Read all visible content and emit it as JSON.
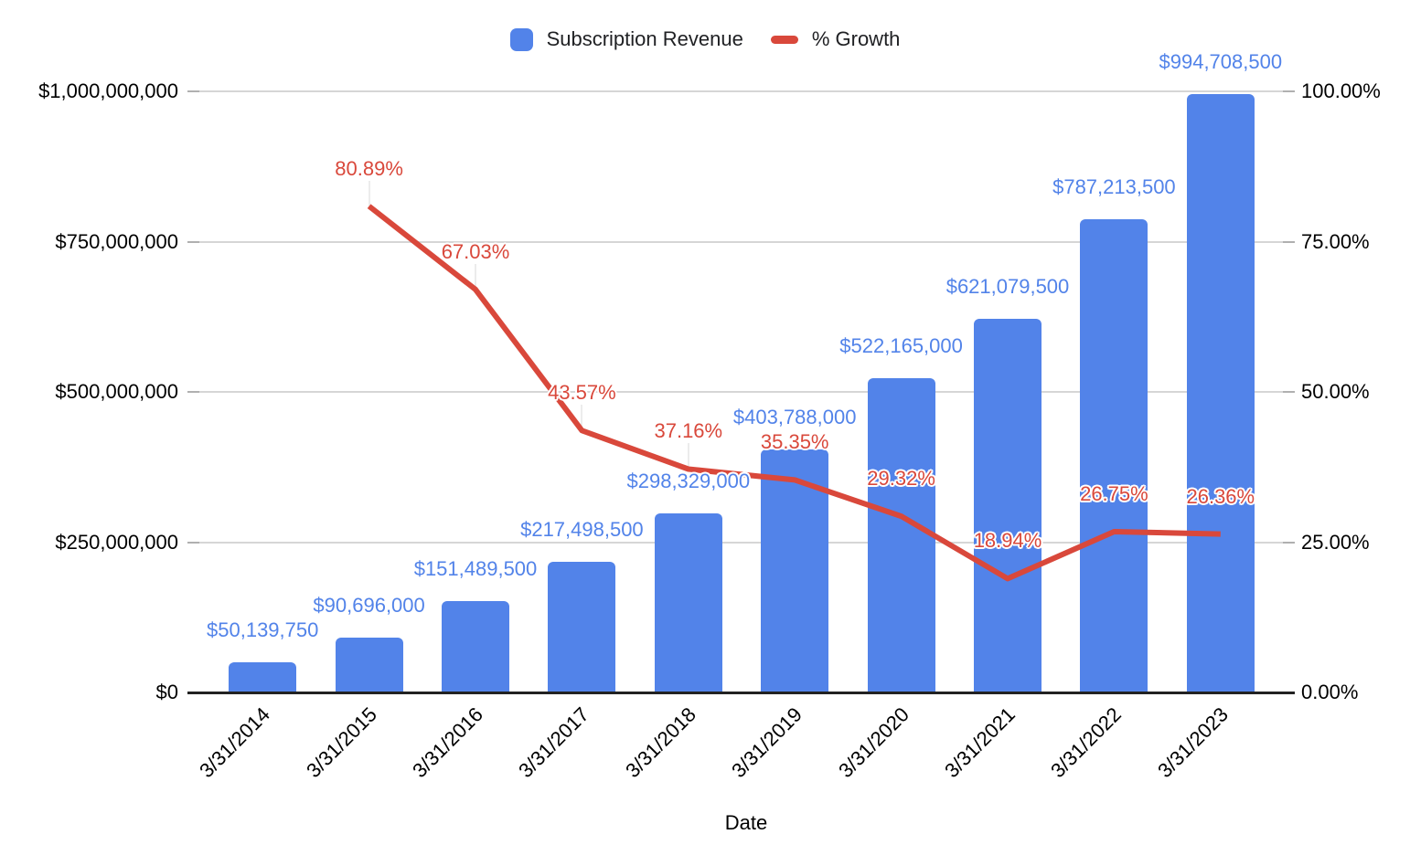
{
  "chart_data": {
    "type": "combo-bar-line",
    "title": "",
    "xlabel": "Date",
    "grid": true,
    "legend_position": "top",
    "categories": [
      "3/31/2014",
      "3/31/2015",
      "3/31/2016",
      "3/31/2017",
      "3/31/2018",
      "3/31/2019",
      "3/31/2020",
      "3/31/2021",
      "3/31/2022",
      "3/31/2023"
    ],
    "series": [
      {
        "name": "Subscription Revenue",
        "type": "bar",
        "axis": "left",
        "color": "#5283E9",
        "values": [
          50139750,
          90696000,
          151489500,
          217498500,
          298329000,
          403788000,
          522165000,
          621079500,
          787213500,
          994708500
        ],
        "data_labels": [
          "$50,139,750",
          "$90,696,000",
          "$151,489,500",
          "$217,498,500",
          "$298,329,000",
          "$403,788,000",
          "$522,165,000",
          "$621,079,500",
          "$787,213,500",
          "$994,708,500"
        ]
      },
      {
        "name": "% Growth",
        "type": "line",
        "axis": "right",
        "color": "#D9483B",
        "values": [
          null,
          80.89,
          67.03,
          43.57,
          37.16,
          35.35,
          29.32,
          18.94,
          26.75,
          26.36
        ],
        "data_labels": [
          null,
          "80.89%",
          "67.03%",
          "43.57%",
          "37.16%",
          "35.35%",
          "29.32%",
          "18.94%",
          "26.75%",
          "26.36%"
        ]
      }
    ],
    "axes": {
      "left": {
        "min": 0,
        "max": 1000000000,
        "tick_labels": [
          "$0",
          "$250,000,000",
          "$500,000,000",
          "$750,000,000",
          "$1,000,000,000"
        ]
      },
      "right": {
        "min": 0,
        "max": 100,
        "tick_labels": [
          "0.00%",
          "25.00%",
          "50.00%",
          "75.00%",
          "100.00%"
        ]
      }
    }
  },
  "palette": {
    "background": "#FFFFFF",
    "gridline": "#D6D6D6",
    "tick": "#B0B0B0",
    "axis_line": "#222222",
    "axis_text": "#000000",
    "legend_text": "#202124",
    "leader_line": "#ECECEC"
  }
}
